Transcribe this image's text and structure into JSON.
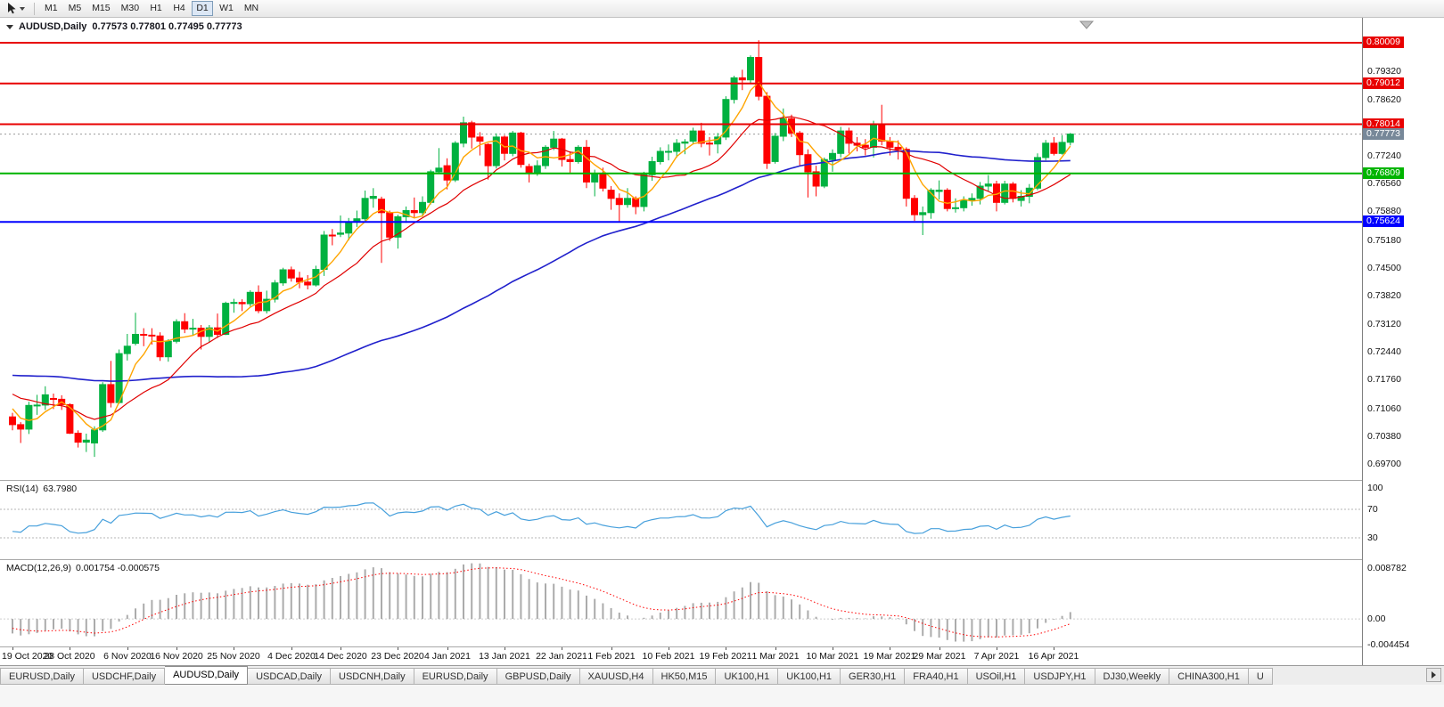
{
  "toolbar": {
    "timeframes": [
      "M1",
      "M5",
      "M15",
      "M30",
      "H1",
      "H4",
      "D1",
      "W1",
      "MN"
    ],
    "active_timeframe": "D1"
  },
  "chart": {
    "title": "AUDUSD,Daily",
    "ohlc_text": "0.77573 0.77801 0.77495 0.77773",
    "colors": {
      "up": "#00B140",
      "down": "#FF0000",
      "ma_fast": "#FFA500",
      "ma_mid": "#E00000",
      "ma_slow": "#2020CC",
      "bid_box": "#778899",
      "bid_line": "#9a9a9a"
    },
    "bid": {
      "price": 0.77773,
      "label": "0.77773"
    },
    "hlines": [
      {
        "price": 0.80009,
        "label": "0.80009",
        "color": "#E80000"
      },
      {
        "price": 0.79012,
        "label": "0.79012",
        "color": "#E80000"
      },
      {
        "price": 0.78014,
        "label": "0.78014",
        "color": "#E80000"
      },
      {
        "price": 0.76809,
        "label": "0.76809",
        "color": "#00B400"
      },
      {
        "price": 0.75624,
        "label": "0.75624",
        "color": "#0000FF"
      }
    ],
    "price_axis_labels": [
      "0.79320",
      "0.78620",
      "0.77240",
      "0.76560",
      "0.75880",
      "0.75180",
      "0.74500",
      "0.73820",
      "0.73120",
      "0.72440",
      "0.71760",
      "0.71060",
      "0.70380",
      "0.69700"
    ],
    "date_axis": [
      {
        "label": "19 Oct 2020",
        "index": 0
      },
      {
        "label": "28 Oct 2020",
        "index": 7
      },
      {
        "label": "6 Nov 2020",
        "index": 14
      },
      {
        "label": "16 Nov 2020",
        "index": 20
      },
      {
        "label": "25 Nov 2020",
        "index": 27
      },
      {
        "label": "4 Dec 2020",
        "index": 34
      },
      {
        "label": "14 Dec 2020",
        "index": 40
      },
      {
        "label": "23 Dec 2020",
        "index": 47
      },
      {
        "label": "4 Jan 2021",
        "index": 53
      },
      {
        "label": "13 Jan 2021",
        "index": 60
      },
      {
        "label": "22 Jan 2021",
        "index": 67
      },
      {
        "label": "1 Feb 2021",
        "index": 73
      },
      {
        "label": "10 Feb 2021",
        "index": 80
      },
      {
        "label": "19 Feb 2021",
        "index": 87
      },
      {
        "label": "1 Mar 2021",
        "index": 93
      },
      {
        "label": "10 Mar 2021",
        "index": 100
      },
      {
        "label": "19 Mar 2021",
        "index": 107
      },
      {
        "label": "29 Mar 2021",
        "index": 113
      },
      {
        "label": "7 Apr 2021",
        "index": 120
      },
      {
        "label": "16 Apr 2021",
        "index": 127
      }
    ],
    "prehistory_closes": [
      0.7095,
      0.7112,
      0.7138,
      0.7152,
      0.7148,
      0.717,
      0.7185,
      0.7198,
      0.7175,
      0.7152,
      0.7165,
      0.7178,
      0.7192,
      0.7205,
      0.7222,
      0.7212,
      0.7178,
      0.715,
      0.7168,
      0.7196,
      0.7218,
      0.7242,
      0.7265,
      0.7288,
      0.7315,
      0.7338,
      0.7356,
      0.7372,
      0.735,
      0.7318,
      0.7285,
      0.7248,
      0.721,
      0.7255,
      0.7275,
      0.7238,
      0.719,
      0.7142,
      0.7095,
      0.7058,
      0.7022,
      0.705,
      0.7078,
      0.7115,
      0.7145,
      0.7175,
      0.7205,
      0.7228,
      0.719,
      0.7162,
      0.718,
      0.7198,
      0.7165,
      0.7138,
      0.7122,
      0.715,
      0.7172,
      0.714,
      0.7092,
      0.7055
    ],
    "candles": [
      [
        0.7085,
        0.7095,
        0.7052,
        0.7066
      ],
      [
        0.7066,
        0.7072,
        0.7021,
        0.7055
      ],
      [
        0.7055,
        0.7122,
        0.7043,
        0.7113
      ],
      [
        0.7113,
        0.7139,
        0.709,
        0.7114
      ],
      [
        0.7114,
        0.716,
        0.7102,
        0.7139
      ],
      [
        0.713,
        0.7142,
        0.7104,
        0.7128
      ],
      [
        0.7128,
        0.7138,
        0.7102,
        0.7115
      ],
      [
        0.7115,
        0.7118,
        0.7043,
        0.7045
      ],
      [
        0.7045,
        0.7052,
        0.701,
        0.7023
      ],
      [
        0.7023,
        0.7044,
        0.6999,
        0.7028
      ],
      [
        0.7021,
        0.7062,
        0.6987,
        0.7053
      ],
      [
        0.7053,
        0.717,
        0.7048,
        0.7164
      ],
      [
        0.7164,
        0.7222,
        0.7108,
        0.712
      ],
      [
        0.712,
        0.725,
        0.7117,
        0.724
      ],
      [
        0.724,
        0.7288,
        0.7223,
        0.7258
      ],
      [
        0.7265,
        0.734,
        0.726,
        0.7287
      ],
      [
        0.7287,
        0.7302,
        0.7258,
        0.7285
      ],
      [
        0.7285,
        0.7302,
        0.7262,
        0.7283
      ],
      [
        0.7283,
        0.7292,
        0.7222,
        0.7232
      ],
      [
        0.7232,
        0.7275,
        0.722,
        0.727
      ],
      [
        0.727,
        0.7324,
        0.7265,
        0.7318
      ],
      [
        0.7318,
        0.7339,
        0.729,
        0.73
      ],
      [
        0.73,
        0.7325,
        0.7285,
        0.7302
      ],
      [
        0.7302,
        0.731,
        0.725,
        0.7282
      ],
      [
        0.7282,
        0.731,
        0.7267,
        0.7303
      ],
      [
        0.7303,
        0.7338,
        0.7278,
        0.7287
      ],
      [
        0.7287,
        0.7367,
        0.7285,
        0.7363
      ],
      [
        0.7363,
        0.7374,
        0.734,
        0.7365
      ],
      [
        0.7365,
        0.7373,
        0.7344,
        0.7362
      ],
      [
        0.7362,
        0.7395,
        0.7355,
        0.739
      ],
      [
        0.739,
        0.7407,
        0.7339,
        0.7345
      ],
      [
        0.7345,
        0.7394,
        0.7338,
        0.7373
      ],
      [
        0.7373,
        0.742,
        0.7365,
        0.7413
      ],
      [
        0.7413,
        0.745,
        0.7406,
        0.7445
      ],
      [
        0.7445,
        0.7453,
        0.7416,
        0.7425
      ],
      [
        0.7425,
        0.744,
        0.74,
        0.7415
      ],
      [
        0.7415,
        0.7432,
        0.7397,
        0.7408
      ],
      [
        0.7408,
        0.7455,
        0.7404,
        0.7446
      ],
      [
        0.7446,
        0.754,
        0.743,
        0.753
      ],
      [
        0.753,
        0.7545,
        0.7505,
        0.7528
      ],
      [
        0.7532,
        0.7578,
        0.7525,
        0.7535
      ],
      [
        0.7535,
        0.7572,
        0.7517,
        0.7562
      ],
      [
        0.7562,
        0.759,
        0.755,
        0.757
      ],
      [
        0.757,
        0.7639,
        0.7565,
        0.762
      ],
      [
        0.762,
        0.7645,
        0.7597,
        0.7625
      ],
      [
        0.7618,
        0.7624,
        0.7462,
        0.7585
      ],
      [
        0.7585,
        0.759,
        0.7516,
        0.7525
      ],
      [
        0.7525,
        0.758,
        0.7497,
        0.7575
      ],
      [
        0.7575,
        0.76,
        0.756,
        0.759
      ],
      [
        0.759,
        0.7622,
        0.7572,
        0.7585
      ],
      [
        0.7585,
        0.7625,
        0.7575,
        0.761
      ],
      [
        0.761,
        0.769,
        0.7605,
        0.7685
      ],
      [
        0.7685,
        0.7743,
        0.768,
        0.7694
      ],
      [
        0.77,
        0.7718,
        0.7642,
        0.7665
      ],
      [
        0.7665,
        0.776,
        0.766,
        0.7755
      ],
      [
        0.7755,
        0.782,
        0.7745,
        0.7805
      ],
      [
        0.7805,
        0.781,
        0.7742,
        0.777
      ],
      [
        0.777,
        0.7782,
        0.7725,
        0.776
      ],
      [
        0.7752,
        0.7755,
        0.7666,
        0.77
      ],
      [
        0.77,
        0.7779,
        0.7693,
        0.777
      ],
      [
        0.777,
        0.7775,
        0.7713,
        0.773
      ],
      [
        0.773,
        0.7785,
        0.7723,
        0.778
      ],
      [
        0.778,
        0.7783,
        0.7695,
        0.7703
      ],
      [
        0.7698,
        0.7705,
        0.7659,
        0.7682
      ],
      [
        0.7682,
        0.7713,
        0.7675,
        0.77
      ],
      [
        0.77,
        0.775,
        0.7692,
        0.7745
      ],
      [
        0.7745,
        0.7785,
        0.7738,
        0.7765
      ],
      [
        0.7765,
        0.7768,
        0.7698,
        0.7715
      ],
      [
        0.7715,
        0.7735,
        0.7683,
        0.771
      ],
      [
        0.771,
        0.775,
        0.7705,
        0.7745
      ],
      [
        0.7745,
        0.7763,
        0.7645,
        0.766
      ],
      [
        0.766,
        0.769,
        0.7625,
        0.768
      ],
      [
        0.768,
        0.7695,
        0.7637,
        0.7645
      ],
      [
        0.764,
        0.765,
        0.7592,
        0.762
      ],
      [
        0.762,
        0.7632,
        0.7563,
        0.7605
      ],
      [
        0.7605,
        0.7645,
        0.7597,
        0.762
      ],
      [
        0.762,
        0.7625,
        0.7581,
        0.76
      ],
      [
        0.76,
        0.7685,
        0.7588,
        0.7678
      ],
      [
        0.7678,
        0.7722,
        0.7663,
        0.771
      ],
      [
        0.771,
        0.7745,
        0.7703,
        0.7735
      ],
      [
        0.7735,
        0.7752,
        0.7713,
        0.7735
      ],
      [
        0.7735,
        0.7765,
        0.772,
        0.7755
      ],
      [
        0.7755,
        0.7765,
        0.7728,
        0.7758
      ],
      [
        0.776,
        0.7793,
        0.7752,
        0.7785
      ],
      [
        0.7785,
        0.7805,
        0.7745,
        0.7755
      ],
      [
        0.7755,
        0.777,
        0.7725,
        0.7753
      ],
      [
        0.7753,
        0.778,
        0.773,
        0.777
      ],
      [
        0.777,
        0.787,
        0.7763,
        0.7862
      ],
      [
        0.7862,
        0.792,
        0.7852,
        0.7915
      ],
      [
        0.7915,
        0.7935,
        0.7885,
        0.791
      ],
      [
        0.791,
        0.797,
        0.79,
        0.7965
      ],
      [
        0.7965,
        0.8007,
        0.786,
        0.787
      ],
      [
        0.787,
        0.788,
        0.7692,
        0.7706
      ],
      [
        0.771,
        0.778,
        0.7705,
        0.7772
      ],
      [
        0.7772,
        0.784,
        0.776,
        0.7815
      ],
      [
        0.7815,
        0.7825,
        0.777,
        0.778
      ],
      [
        0.778,
        0.7785,
        0.77,
        0.7727
      ],
      [
        0.7727,
        0.774,
        0.7622,
        0.7685
      ],
      [
        0.7685,
        0.77,
        0.7625,
        0.765
      ],
      [
        0.765,
        0.772,
        0.7645,
        0.7715
      ],
      [
        0.7715,
        0.774,
        0.7685,
        0.773
      ],
      [
        0.773,
        0.7795,
        0.772,
        0.7785
      ],
      [
        0.7785,
        0.7793,
        0.773,
        0.7755
      ],
      [
        0.7755,
        0.777,
        0.7735,
        0.775
      ],
      [
        0.775,
        0.7765,
        0.7725,
        0.7745
      ],
      [
        0.7745,
        0.781,
        0.772,
        0.78
      ],
      [
        0.78,
        0.7849,
        0.775,
        0.776
      ],
      [
        0.776,
        0.777,
        0.7725,
        0.7745
      ],
      [
        0.7745,
        0.7762,
        0.7715,
        0.774
      ],
      [
        0.774,
        0.7745,
        0.76,
        0.762
      ],
      [
        0.762,
        0.7628,
        0.7565,
        0.758
      ],
      [
        0.758,
        0.76,
        0.753,
        0.7585
      ],
      [
        0.7585,
        0.7645,
        0.757,
        0.764
      ],
      [
        0.7637,
        0.7664,
        0.7617,
        0.764
      ],
      [
        0.764,
        0.7645,
        0.7588,
        0.7595
      ],
      [
        0.7595,
        0.762,
        0.7585,
        0.7597
      ],
      [
        0.7597,
        0.7625,
        0.7588,
        0.7615
      ],
      [
        0.7615,
        0.7632,
        0.7602,
        0.762
      ],
      [
        0.762,
        0.766,
        0.7605,
        0.765
      ],
      [
        0.765,
        0.7677,
        0.7638,
        0.7655
      ],
      [
        0.7655,
        0.7663,
        0.7588,
        0.761
      ],
      [
        0.761,
        0.7663,
        0.7605,
        0.7655
      ],
      [
        0.7655,
        0.766,
        0.761,
        0.762
      ],
      [
        0.7615,
        0.764,
        0.76,
        0.7625
      ],
      [
        0.7625,
        0.7655,
        0.7608,
        0.7645
      ],
      [
        0.7645,
        0.773,
        0.764,
        0.772
      ],
      [
        0.772,
        0.7763,
        0.7713,
        0.7755
      ],
      [
        0.7755,
        0.777,
        0.7725,
        0.773
      ],
      [
        0.773,
        0.7775,
        0.7727,
        0.7757
      ],
      [
        0.77573,
        0.77801,
        0.77495,
        0.77773
      ]
    ]
  },
  "rsi": {
    "title": "RSI(14)",
    "value": "63.7980",
    "color": "#47A0DC",
    "levels": [
      {
        "label": "100",
        "value": 100
      },
      {
        "label": "70",
        "value": 70
      },
      {
        "label": "30",
        "value": 30
      }
    ]
  },
  "macd": {
    "title": "MACD(12,26,9)",
    "values": "0.001754 -0.000575",
    "histogram_color": "#ABABAB",
    "signal_color": "#FF0000",
    "axis": [
      {
        "label": "0.008782",
        "value": 0.008782
      },
      {
        "label": "0.00",
        "value": 0
      },
      {
        "label": "-0.004454",
        "value": -0.004454
      }
    ]
  },
  "tabs": {
    "items": [
      "EURUSD,Daily",
      "USDCHF,Daily",
      "AUDUSD,Daily",
      "USDCAD,Daily",
      "USDCNH,Daily",
      "EURUSD,Daily",
      "GBPUSD,Daily",
      "XAUUSD,H4",
      "HK50,M15",
      "UK100,H1",
      "UK100,H1",
      "GER30,H1",
      "FRA40,H1",
      "USOil,H1",
      "USDJPY,H1",
      "DJ30,Weekly",
      "CHINA300,H1",
      "U"
    ],
    "active_index": 2
  }
}
